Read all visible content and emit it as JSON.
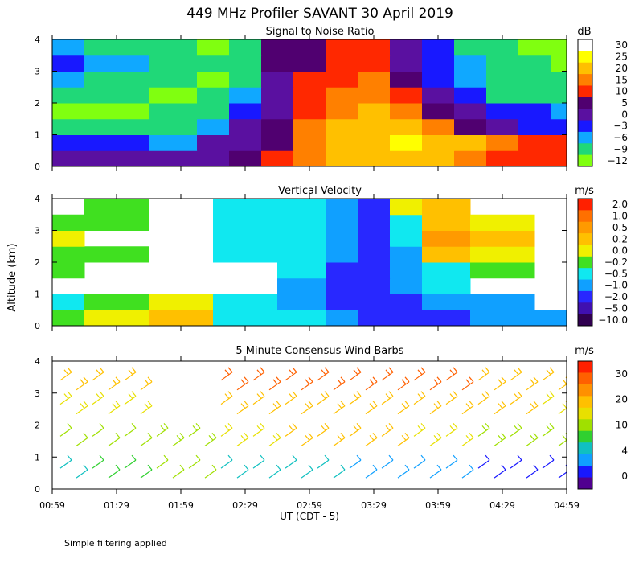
{
  "title": "449 MHz Profiler SAVANT 30 April 2019",
  "ylabel": "Altitude (km)",
  "xlabel": "UT  (CDT - 5)",
  "footnote": "Simple filtering applied",
  "x_ticks": [
    "00:59",
    "01:29",
    "01:59",
    "02:29",
    "02:59",
    "03:29",
    "03:59",
    "04:29",
    "04:59"
  ],
  "y_ticks": [
    "0",
    "1",
    "2",
    "3",
    "4"
  ],
  "chart_data": [
    {
      "type": "heatmap",
      "title": "Signal to Noise Ratio",
      "unit": "dB",
      "xlim": [
        "00:59",
        "04:59"
      ],
      "ylim": [
        0,
        4
      ],
      "colorbar": {
        "labels": [
          "30",
          "25",
          "20",
          "15",
          "10",
          "5",
          "0",
          "−3",
          "−6",
          "−9",
          "−12"
        ],
        "colors": [
          "#ffffff",
          "#ffff00",
          "#ffc000",
          "#ff8000",
          "#ff2800",
          "#500070",
          "#5a10a0",
          "#1818ff",
          "#10a8ff",
          "#20d878",
          "#80ff10"
        ]
      },
      "description_values": {
        "times": [
          "00:59",
          "01:29",
          "01:59",
          "02:14",
          "02:29",
          "02:44",
          "02:59",
          "03:14",
          "03:29",
          "03:44",
          "03:59",
          "04:14",
          "04:29",
          "04:44",
          "04:59"
        ],
        "altitudes_km": [
          0.25,
          0.75,
          1.25,
          1.75,
          2.25,
          2.75,
          3.25,
          3.75
        ],
        "snr_db": [
          [
            2,
            2,
            2,
            2,
            4,
            8,
            14,
            18,
            20,
            20,
            18,
            14,
            12,
            10,
            10
          ],
          [
            -3,
            -4,
            -6,
            0,
            2,
            6,
            16,
            20,
            22,
            24,
            22,
            18,
            14,
            12,
            10
          ],
          [
            -8,
            -9,
            -10,
            -6,
            0,
            4,
            14,
            18,
            20,
            20,
            16,
            6,
            2,
            -2,
            -3
          ],
          [
            -12,
            -12,
            -10,
            -9,
            -3,
            2,
            12,
            16,
            18,
            14,
            6,
            0,
            -3,
            -4,
            -6
          ],
          [
            -9,
            -10,
            -12,
            -10,
            -6,
            1,
            10,
            14,
            15,
            8,
            2,
            -4,
            -8,
            -9,
            -10
          ],
          [
            -6,
            -9,
            -10,
            -12,
            -9,
            2,
            8,
            12,
            14,
            4,
            -2,
            -6,
            -9,
            -10,
            -10
          ],
          [
            -3,
            -6,
            -9,
            -10,
            -9,
            3,
            6,
            10,
            12,
            2,
            -3,
            -6,
            -9,
            -10,
            -12
          ],
          [
            -6,
            -9,
            -10,
            -12,
            -10,
            4,
            4,
            8,
            12,
            1,
            -4,
            -8,
            -10,
            -12,
            -12
          ]
        ]
      }
    },
    {
      "type": "heatmap",
      "title": "Vertical Velocity",
      "unit": "m/s",
      "xlim": [
        "00:59",
        "04:59"
      ],
      "ylim": [
        0,
        4
      ],
      "colorbar": {
        "labels": [
          "2.0",
          "1.0",
          "0.5",
          "0.2",
          "0.0",
          "−0.2",
          "−0.5",
          "−1.0",
          "−2.0",
          "−5.0",
          "−10.0"
        ],
        "colors": [
          "#ff2000",
          "#ff7000",
          "#ff9a00",
          "#ffc000",
          "#f0f000",
          "#40e020",
          "#10e8f0",
          "#10a0ff",
          "#2828ff",
          "#4010b0",
          "#300050"
        ]
      },
      "description_values": {
        "times": [
          "00:59",
          "01:29",
          "01:59",
          "02:29",
          "02:59",
          "03:14",
          "03:29",
          "03:44",
          "03:59",
          "04:29",
          "04:59"
        ],
        "altitudes_km": [
          0.25,
          0.75,
          1.25,
          1.75,
          2.25,
          2.75,
          3.25,
          3.75
        ],
        "velocity_ms": [
          [
            -0.2,
            0.0,
            0.2,
            -0.5,
            -0.5,
            -1.0,
            -2.0,
            -2.0,
            -2.0,
            -1.0,
            -1.0
          ],
          [
            -0.5,
            -0.2,
            0.0,
            -0.5,
            -1.0,
            -2.0,
            -2.0,
            -2.0,
            -1.0,
            -1.0,
            null
          ],
          [
            null,
            null,
            null,
            null,
            -1.0,
            -2.0,
            -2.0,
            -1.0,
            -0.5,
            null,
            null
          ],
          [
            -0.2,
            null,
            null,
            null,
            -0.5,
            -2.0,
            -2.0,
            -1.0,
            -0.5,
            -0.2,
            null
          ],
          [
            -0.2,
            -0.2,
            null,
            -0.5,
            -0.5,
            -1.0,
            -2.0,
            -1.0,
            0.2,
            0.0,
            null
          ],
          [
            0.0,
            null,
            null,
            -0.5,
            -0.5,
            -1.0,
            -2.0,
            -0.5,
            0.5,
            0.2,
            null
          ],
          [
            -0.2,
            -0.2,
            null,
            -0.5,
            -0.5,
            -1.0,
            -2.0,
            -0.5,
            0.2,
            0.0,
            null
          ],
          [
            null,
            -0.2,
            null,
            -0.5,
            -0.5,
            -1.0,
            -2.0,
            0.0,
            0.2,
            null,
            null
          ]
        ]
      }
    },
    {
      "type": "scatter",
      "title": "5 Minute Consensus Wind Barbs",
      "unit": "m/s",
      "xlim": [
        "00:59",
        "04:59"
      ],
      "ylim": [
        0,
        4
      ],
      "colorbar": {
        "labels": [
          "30",
          "20",
          "10",
          "4",
          "0"
        ],
        "colors": [
          "#ff2000",
          "#ff6000",
          "#ff9000",
          "#ffc000",
          "#e8e000",
          "#a0e000",
          "#30d030",
          "#10c0c0",
          "#10a0ff",
          "#1818ff",
          "#500090"
        ]
      },
      "description_values": {
        "times": [
          "00:59",
          "01:29",
          "01:59",
          "02:29",
          "02:59",
          "03:29",
          "03:59",
          "04:29",
          "04:59"
        ],
        "altitudes_km": [
          0.5,
          1.5,
          2.5,
          3.25
        ],
        "speed_ms": [
          [
            10,
            12,
            14,
            10,
            8,
            6,
            6,
            4,
            3
          ],
          [
            14,
            14,
            16,
            18,
            20,
            22,
            18,
            16,
            16
          ],
          [
            18,
            18,
            null,
            20,
            22,
            22,
            20,
            20,
            18
          ],
          [
            20,
            20,
            null,
            26,
            28,
            28,
            26,
            22,
            22
          ]
        ]
      }
    }
  ]
}
